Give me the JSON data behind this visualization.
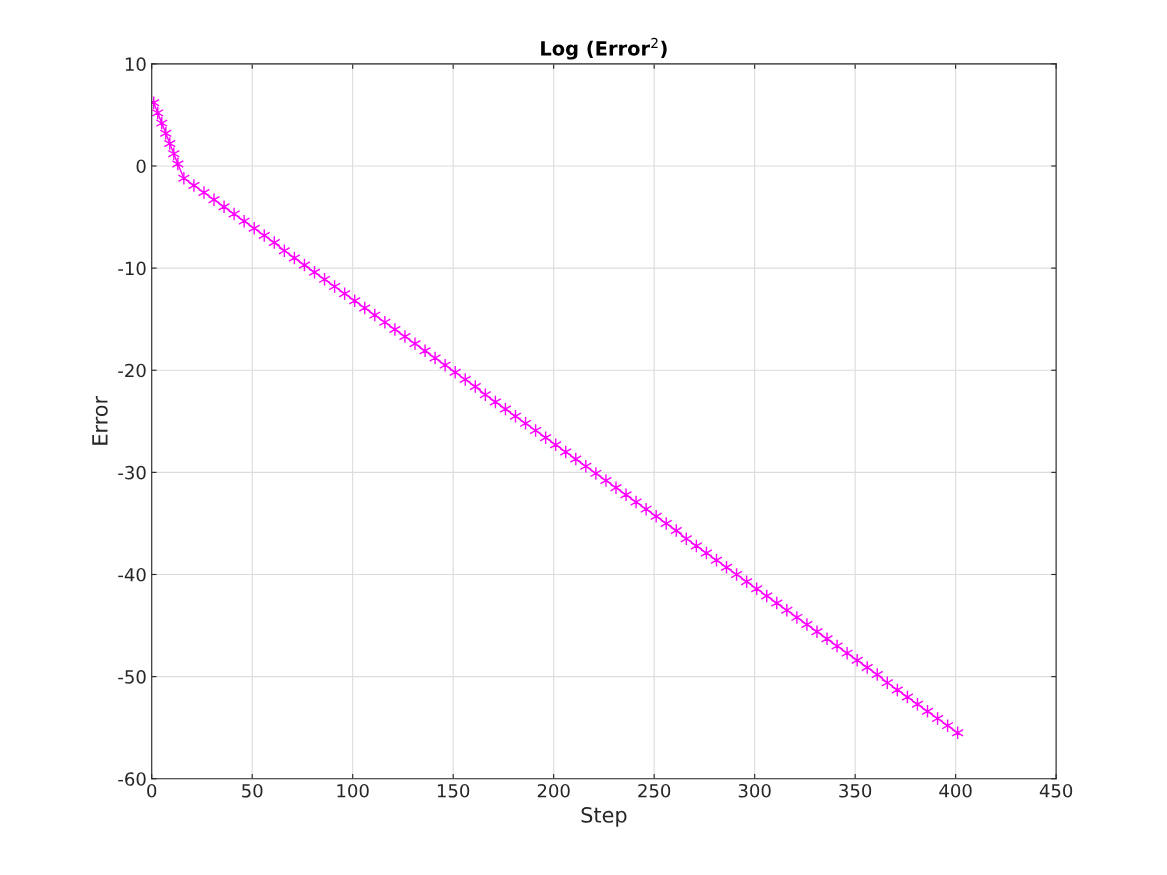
{
  "chart_data": {
    "type": "line",
    "title": "Log (Error$^{2}$)",
    "xlabel": "Step",
    "ylabel": "Error",
    "x": [
      1,
      3,
      5,
      7,
      9,
      11,
      13,
      16,
      21,
      26,
      31,
      36,
      41,
      46,
      51,
      56,
      61,
      66,
      71,
      76,
      81,
      86,
      91,
      96,
      101,
      106,
      111,
      116,
      121,
      126,
      131,
      136,
      141,
      146,
      151,
      156,
      161,
      166,
      171,
      176,
      181,
      186,
      191,
      196,
      201,
      206,
      211,
      216,
      221,
      226,
      231,
      236,
      241,
      246,
      251,
      256,
      261,
      266,
      271,
      276,
      281,
      286,
      291,
      296,
      301,
      306,
      311,
      316,
      321,
      326,
      331,
      336,
      341,
      346,
      351,
      356,
      361,
      366,
      371,
      376,
      381,
      386,
      391,
      396,
      401
    ],
    "series": [
      {
        "color": "#ff00ff",
        "values": [
          6.2,
          5.2,
          4.2,
          3.2,
          2.2,
          1.2,
          0.2,
          -1.2,
          -1.9,
          -2.6,
          -3.3,
          -4.0,
          -4.7,
          -5.4,
          -6.1,
          -6.8,
          -7.5,
          -8.3,
          -9.0,
          -9.7,
          -10.4,
          -11.1,
          -11.8,
          -12.5,
          -13.2,
          -13.9,
          -14.6,
          -15.3,
          -16.0,
          -16.7,
          -17.4,
          -18.1,
          -18.8,
          -19.5,
          -20.2,
          -20.9,
          -21.6,
          -22.4,
          -23.1,
          -23.8,
          -24.5,
          -25.2,
          -25.9,
          -26.6,
          -27.3,
          -28.0,
          -28.7,
          -29.4,
          -30.1,
          -30.8,
          -31.5,
          -32.2,
          -32.9,
          -33.6,
          -34.3,
          -35.0,
          -35.7,
          -36.5,
          -37.2,
          -37.9,
          -38.6,
          -39.3,
          -40.0,
          -40.7,
          -41.4,
          -42.1,
          -42.8,
          -43.5,
          -44.2,
          -44.9,
          -45.6,
          -46.3,
          -47.0,
          -47.7,
          -48.4,
          -49.1,
          -49.8,
          -50.6,
          -51.3,
          -52.0,
          -52.7,
          -53.4,
          -54.1,
          -54.8,
          -55.5
        ]
      }
    ],
    "xlim": [
      0,
      450
    ],
    "xticks": [
      0,
      50,
      100,
      150,
      200,
      250,
      300,
      350,
      400,
      450
    ],
    "ylim": [
      -60,
      10
    ],
    "yticks": [
      -60,
      -50,
      -40,
      -30,
      -20,
      -10,
      0,
      10
    ],
    "grid": true,
    "marker": "cross",
    "line_style": "solid"
  }
}
